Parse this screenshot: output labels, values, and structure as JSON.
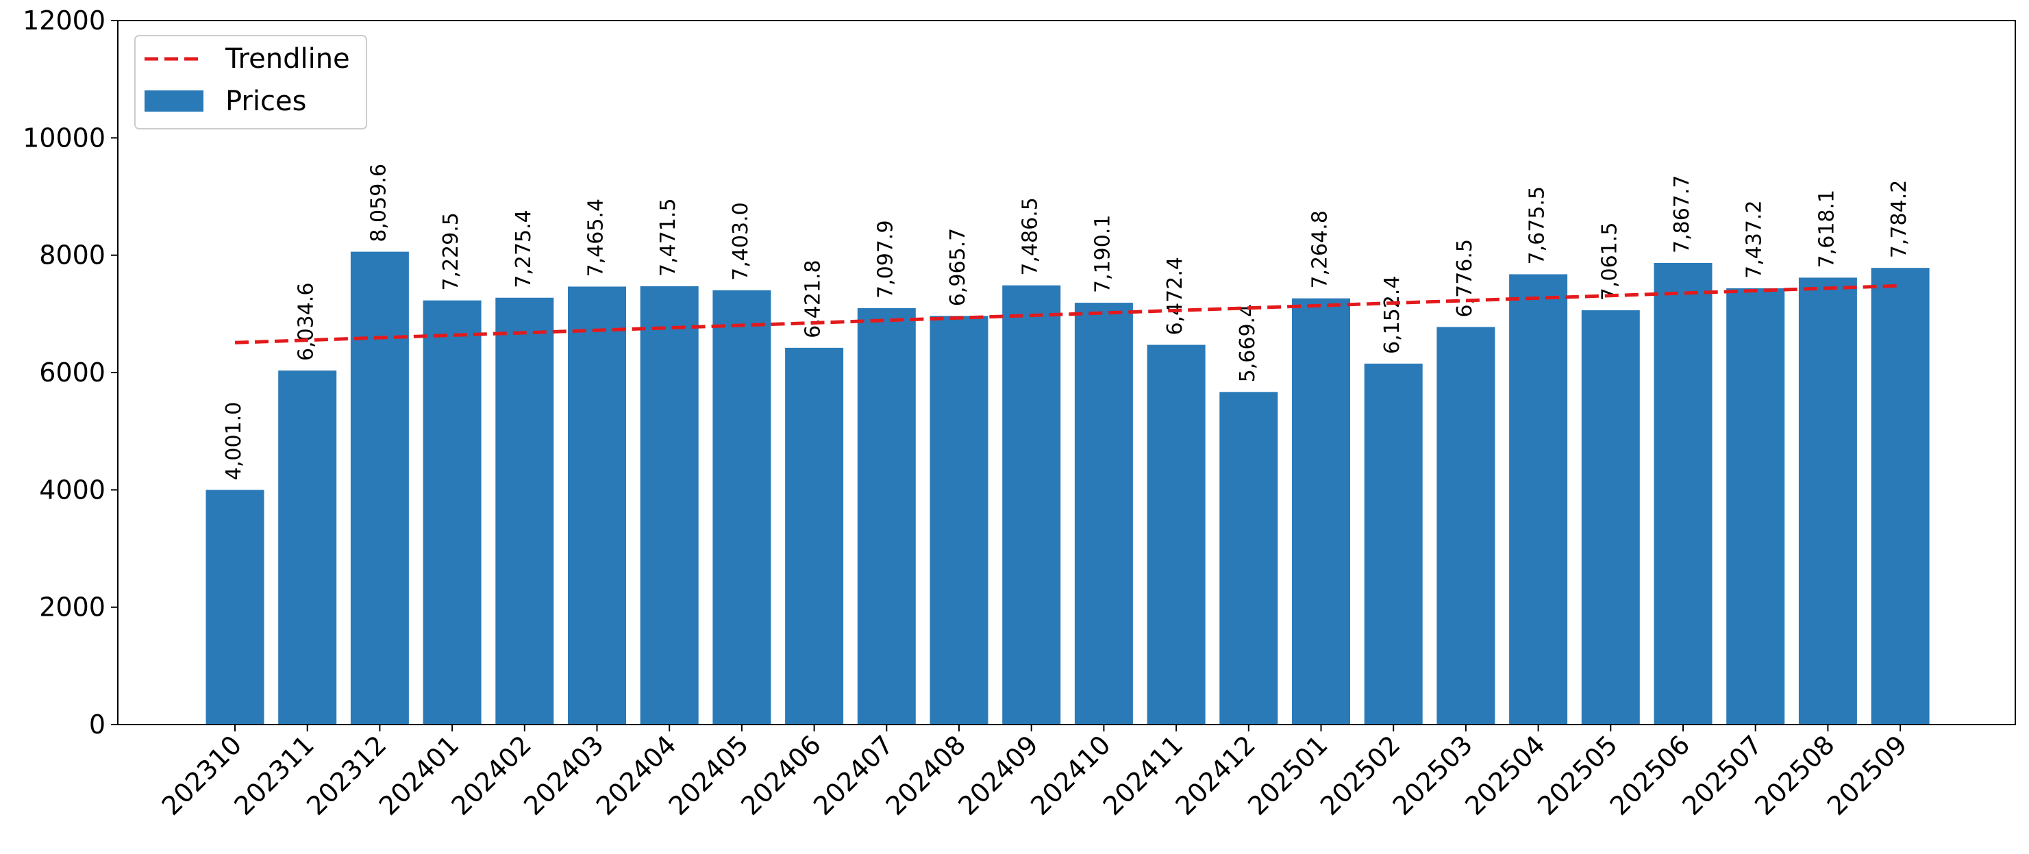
{
  "chart_data": {
    "type": "bar",
    "categories": [
      "202310",
      "202311",
      "202312",
      "202401",
      "202402",
      "202403",
      "202404",
      "202405",
      "202406",
      "202407",
      "202408",
      "202409",
      "202410",
      "202411",
      "202412",
      "202501",
      "202502",
      "202503",
      "202504",
      "202505",
      "202506",
      "202507",
      "202508",
      "202509"
    ],
    "series": [
      {
        "name": "Prices",
        "type": "bar",
        "color": "#2a7ab8",
        "values": [
          4001.0,
          6034.6,
          8059.6,
          7229.5,
          7275.4,
          7465.4,
          7471.5,
          7403.0,
          6421.8,
          7097.9,
          6965.7,
          7486.5,
          7190.1,
          6472.4,
          5669.4,
          7264.8,
          6152.4,
          6776.5,
          7675.5,
          7061.5,
          7867.7,
          7437.2,
          7618.1,
          7784.2
        ],
        "value_labels": [
          "4,001.0",
          "6,034.6",
          "8,059.6",
          "7,229.5",
          "7,275.4",
          "7,465.4",
          "7,471.5",
          "7,403.0",
          "6,421.8",
          "7,097.9",
          "6,965.7",
          "7,486.5",
          "7,190.1",
          "6,472.4",
          "5,669.4",
          "7,264.8",
          "6,152.4",
          "6,776.5",
          "7,675.5",
          "7,061.5",
          "7,867.7",
          "7,437.2",
          "7,618.1",
          "7,784.2"
        ]
      },
      {
        "name": "Trendline",
        "type": "line",
        "style": "dashed",
        "color": "#e31a1c",
        "start": 6510,
        "end": 7480
      }
    ],
    "title": "",
    "xlabel": "",
    "ylabel": "",
    "ylim": [
      0,
      12000
    ],
    "yticks": [
      0,
      2000,
      4000,
      6000,
      8000,
      10000,
      12000
    ],
    "ytick_labels": [
      "0",
      "2000",
      "4000",
      "6000",
      "8000",
      "10000",
      "12000"
    ],
    "grid": false,
    "legend": {
      "position": "upper-left",
      "entries": [
        {
          "label": "Trendline",
          "type": "line",
          "color": "#e31a1c"
        },
        {
          "label": "Prices",
          "type": "bar",
          "color": "#2a7ab8"
        }
      ]
    }
  }
}
